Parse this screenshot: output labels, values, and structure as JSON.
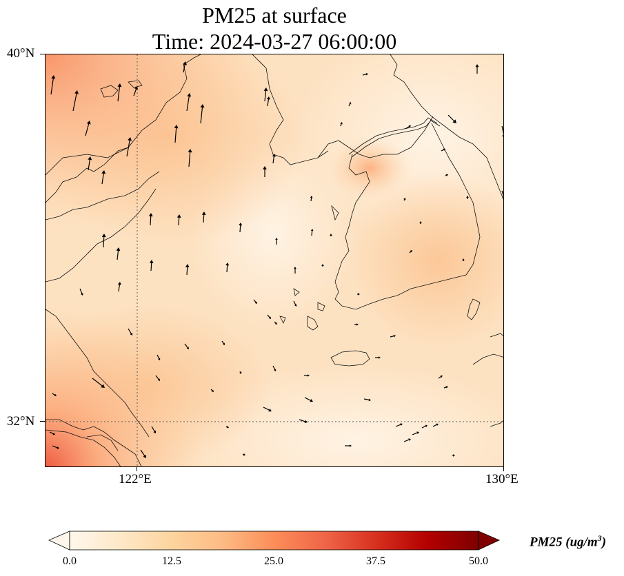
{
  "title": {
    "line1": "PM25 at surface",
    "line2": "Time: 2024-03-27 06:00:00"
  },
  "map": {
    "lon_range": [
      120,
      130
    ],
    "lat_range": [
      31,
      40
    ],
    "lon_ticks": [
      "122°E",
      "130°E"
    ],
    "lat_ticks": [
      "40°N",
      "32°N"
    ],
    "gridlines": "dotted at 122°E and 32°N",
    "field": "PM25 concentration with wind vectors"
  },
  "colorbar": {
    "label_main": "PM25 (ug/m",
    "label_sup": "3",
    "label_close": ")",
    "colormap": "OrRd",
    "vmin": 0.0,
    "vmax": 50.0,
    "extend": "both",
    "ticks": [
      "0.0",
      "12.5",
      "25.0",
      "37.5",
      "50.0"
    ],
    "colors": {
      "c0": "#fff7ec",
      "c1": "#fee8c8",
      "c2": "#fdd49e",
      "c3": "#fdbb84",
      "c4": "#fc8d59",
      "c5": "#ef6548",
      "c6": "#d7301f",
      "c7": "#b30000",
      "c8": "#7f0000"
    }
  }
}
